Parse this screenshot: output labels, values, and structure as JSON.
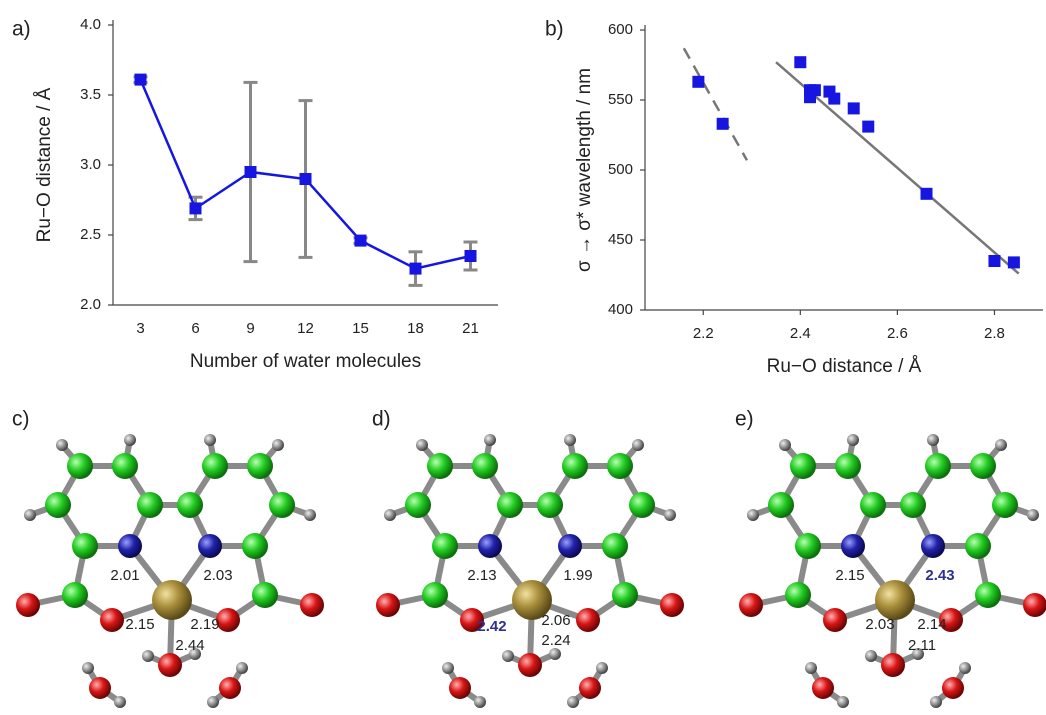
{
  "charts": [
    {
      "type": "line",
      "label": "a)",
      "x_label": "Number of water molecules",
      "y_label": "Ru−O distance / Å",
      "categories": [
        "3",
        "6",
        "9",
        "12",
        "15",
        "18",
        "21"
      ],
      "series": [
        {
          "color": "#1616e0",
          "values": [
            3.61,
            2.69,
            2.95,
            2.9,
            2.46,
            2.26,
            2.35
          ],
          "errors": [
            0.02,
            0.08,
            0.64,
            0.56,
            0.02,
            0.12,
            0.1
          ],
          "error_color": "#888888"
        }
      ],
      "ylim": [
        2.0,
        4.0
      ],
      "yticks": [
        {
          "value": 2,
          "label": "2.0"
        },
        2.5,
        {
          "value": 3,
          "label": "3.0"
        },
        3.5,
        {
          "value": 4,
          "label": "4.0"
        }
      ]
    },
    {
      "type": "scatter",
      "label": "b)",
      "x_label": "Ru−O distance / Å",
      "y_label": "σ → σ* wavelength / nm",
      "color": "#1616e0",
      "x": [
        2.19,
        2.24,
        2.4,
        2.42,
        2.42,
        2.43,
        2.46,
        2.47,
        2.51,
        2.54,
        2.66,
        2.8,
        2.84
      ],
      "values": [
        563,
        533,
        577,
        557,
        552,
        557,
        556,
        551,
        544,
        531,
        483,
        435,
        434
      ],
      "fits": [
        {
          "x": [
            2.16,
            2.29
          ],
          "values": [
            587,
            507
          ],
          "dashed": true,
          "color": "#777777"
        },
        {
          "x": [
            2.35,
            2.85
          ],
          "values": [
            577,
            426
          ],
          "dashed": false,
          "color": "#777777"
        }
      ],
      "xlim": [
        2.08,
        2.9
      ],
      "ylim": [
        400,
        600
      ],
      "xticks": [
        2.2,
        2.4,
        2.6,
        2.8
      ],
      "yticks": [
        400,
        450,
        500,
        550,
        600
      ]
    }
  ],
  "panels": [
    {
      "label": "c)",
      "distances": [
        "2.01",
        "2.03",
        "2.15",
        "2.19",
        "2.44"
      ],
      "highlighted": []
    },
    {
      "label": "d)",
      "distances": [
        "2.13",
        "1.99",
        "2.42",
        "2.06",
        "2.24"
      ],
      "highlighted": [
        2
      ]
    },
    {
      "label": "e)",
      "distances": [
        "2.15",
        "2.43",
        "2.03",
        "2.14",
        "2.11"
      ],
      "highlighted": [
        1
      ]
    }
  ],
  "highlight_color": "#2e3192"
}
